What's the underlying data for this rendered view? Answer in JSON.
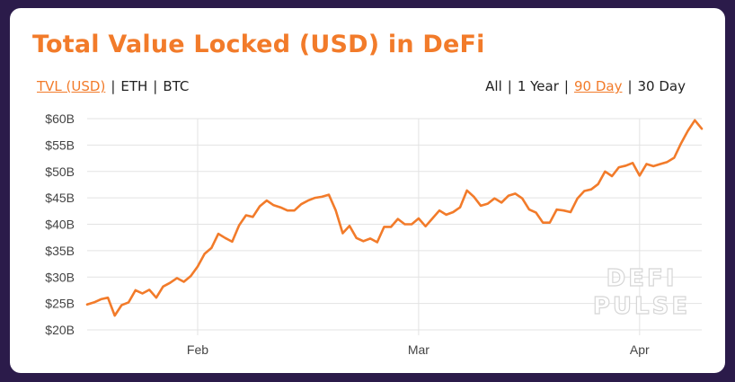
{
  "header": {
    "title": "Total Value Locked (USD) in DeFi"
  },
  "unit_toggles": [
    {
      "label": "TVL (USD)",
      "active": true
    },
    {
      "label": "ETH",
      "active": false
    },
    {
      "label": "BTC",
      "active": false
    }
  ],
  "range_toggles": [
    {
      "label": "All",
      "active": false
    },
    {
      "label": "1 Year",
      "active": false
    },
    {
      "label": "90 Day",
      "active": true
    },
    {
      "label": "30 Day",
      "active": false
    }
  ],
  "separator": "|",
  "watermark": {
    "line1": "DEFI",
    "line2": "PULSE"
  },
  "colors": {
    "accent": "#f27b2a",
    "background": "#2b1b4a",
    "grid": "#e3e3e3"
  },
  "chart_data": {
    "type": "line",
    "title": "Total Value Locked (USD) in DeFi",
    "xlabel": "",
    "ylabel": "",
    "x_ticks": [
      "Feb",
      "Mar",
      "Apr"
    ],
    "x_tick_index": [
      16,
      48,
      80
    ],
    "y_ticks": [
      "$20B",
      "$25B",
      "$30B",
      "$35B",
      "$40B",
      "$45B",
      "$50B",
      "$55B",
      "$60B"
    ],
    "ylim": [
      20,
      60
    ],
    "y_unit": "USD billions",
    "grid": true,
    "series": [
      {
        "values": [
          24.8,
          25.2,
          25.8,
          26.1,
          22.7,
          24.7,
          25.2,
          27.5,
          26.9,
          27.6,
          26.1,
          28.2,
          28.9,
          29.8,
          29.1,
          30.2,
          32.0,
          34.4,
          35.5,
          38.2,
          37.4,
          36.7,
          39.8,
          41.7,
          41.4,
          43.4,
          44.5,
          43.6,
          43.2,
          42.6,
          42.6,
          43.8,
          44.5,
          45.0,
          45.2,
          45.6,
          42.6,
          38.3,
          39.7,
          37.4,
          36.8,
          37.3,
          36.6,
          39.5,
          39.5,
          41.0,
          40.0,
          40.0,
          41.1,
          39.6,
          41.1,
          42.6,
          41.8,
          42.3,
          43.2,
          46.4,
          45.2,
          43.5,
          43.9,
          44.9,
          44.1,
          45.4,
          45.8,
          44.9,
          42.8,
          42.2,
          40.3,
          40.3,
          42.8,
          42.6,
          42.3,
          44.9,
          46.3,
          46.6,
          47.6,
          50.0,
          49.1,
          50.8,
          51.1,
          51.6,
          49.2,
          51.4,
          51.0,
          51.4,
          51.8,
          52.6,
          55.3,
          57.7,
          59.7,
          58.1
        ]
      }
    ]
  }
}
